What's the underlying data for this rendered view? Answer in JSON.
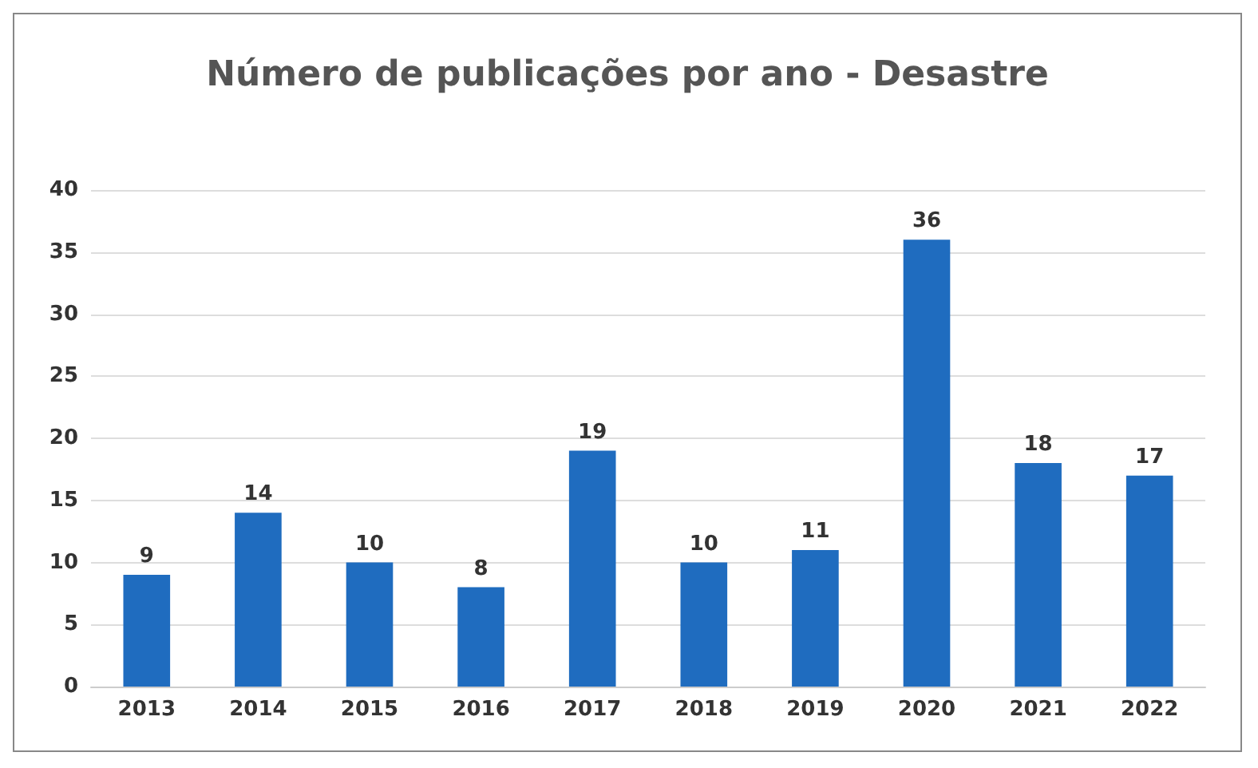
{
  "chart_data": {
    "type": "bar",
    "title": "Número de publicações por ano - Desastre",
    "categories": [
      "2013",
      "2014",
      "2015",
      "2016",
      "2017",
      "2018",
      "2019",
      "2020",
      "2021",
      "2022"
    ],
    "values": [
      9,
      14,
      10,
      8,
      19,
      10,
      11,
      36,
      18,
      17
    ],
    "color": "#1f6cbf",
    "ylim": [
      0,
      40
    ],
    "yticks": [
      0,
      5,
      10,
      15,
      20,
      25,
      30,
      35,
      40
    ],
    "grid": "y",
    "data_labels": true
  }
}
